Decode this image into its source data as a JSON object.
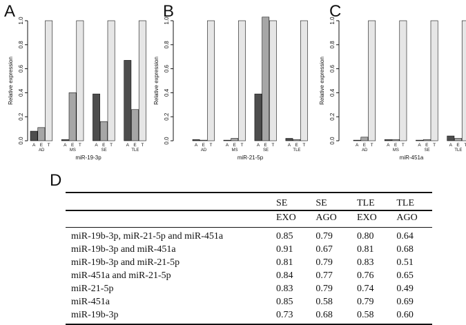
{
  "chart_data": [
    {
      "type": "bar",
      "panel": "A",
      "title": "",
      "xlabel": "miR-19-3p",
      "ylabel": "Relative expression",
      "ylim": [
        0,
        1
      ],
      "yticks": [
        "0.0",
        "0.2",
        "0.4",
        "0.6",
        "0.8",
        "1.0"
      ],
      "categories": [
        "AD",
        "MS",
        "SE",
        "TLE"
      ],
      "condition_labels": [
        "A",
        "E",
        "T"
      ],
      "series": [
        {
          "name": "A",
          "values": [
            0.08,
            0.01,
            0.39,
            0.67
          ]
        },
        {
          "name": "E",
          "values": [
            0.11,
            0.4,
            0.16,
            0.26
          ]
        },
        {
          "name": "T",
          "values": [
            1.0,
            1.0,
            1.0,
            1.0
          ]
        }
      ]
    },
    {
      "type": "bar",
      "panel": "B",
      "title": "",
      "xlabel": "miR-21-5p",
      "ylabel": "Relative expression",
      "ylim": [
        0,
        1
      ],
      "yticks": [
        "0.0",
        "0.2",
        "0.4",
        "0.6",
        "0.8",
        "1.0"
      ],
      "categories": [
        "AD",
        "MS",
        "SE",
        "TLE"
      ],
      "condition_labels": [
        "A",
        "E",
        "T"
      ],
      "series": [
        {
          "name": "A",
          "values": [
            0.01,
            0.005,
            0.39,
            0.02
          ]
        },
        {
          "name": "E",
          "values": [
            0.005,
            0.02,
            1.03,
            0.01
          ]
        },
        {
          "name": "T",
          "values": [
            1.0,
            1.0,
            1.0,
            1.0
          ]
        }
      ]
    },
    {
      "type": "bar",
      "panel": "C",
      "title": "",
      "xlabel": "miR-451a",
      "ylabel": "Relative expression",
      "ylim": [
        0,
        1
      ],
      "yticks": [
        "0.0",
        "0.2",
        "0.4",
        "0.6",
        "0.8",
        "1.0"
      ],
      "categories": [
        "AD",
        "MS",
        "SE",
        "TLE"
      ],
      "condition_labels": [
        "A",
        "E",
        "T"
      ],
      "series": [
        {
          "name": "A",
          "values": [
            0.005,
            0.01,
            0.005,
            0.04
          ]
        },
        {
          "name": "E",
          "values": [
            0.03,
            0.01,
            0.01,
            0.02
          ]
        },
        {
          "name": "T",
          "values": [
            1.0,
            1.0,
            1.0,
            1.0
          ]
        }
      ]
    }
  ],
  "colors": {
    "A": "#4d4d4d",
    "E": "#a6a6a6",
    "T": "#e6e6e6",
    "stroke": "#111111"
  },
  "table": {
    "panel_letter": "D",
    "header_top": [
      "",
      "SE",
      "SE",
      "TLE",
      "TLE"
    ],
    "header_bottom": [
      "",
      "EXO",
      "AGO",
      "EXO",
      "AGO"
    ],
    "rows": [
      [
        "miR-19b-3p, miR-21-5p and miR-451a",
        "0.85",
        "0.79",
        "0.80",
        "0.64"
      ],
      [
        "miR-19b-3p and miR-451a",
        "0.91",
        "0.67",
        "0.81",
        "0.68"
      ],
      [
        "miR-19b-3p and miR-21-5p",
        "0.81",
        "0.79",
        "0.83",
        "0.51"
      ],
      [
        "miR-451a and miR-21-5p",
        "0.84",
        "0.77",
        "0.76",
        "0.65"
      ],
      [
        "miR-21-5p",
        "0.83",
        "0.79",
        "0.74",
        "0.49"
      ],
      [
        "miR-451a",
        "0.85",
        "0.58",
        "0.79",
        "0.69"
      ],
      [
        "miR-19b-3p",
        "0.73",
        "0.68",
        "0.58",
        "0.60"
      ]
    ]
  }
}
